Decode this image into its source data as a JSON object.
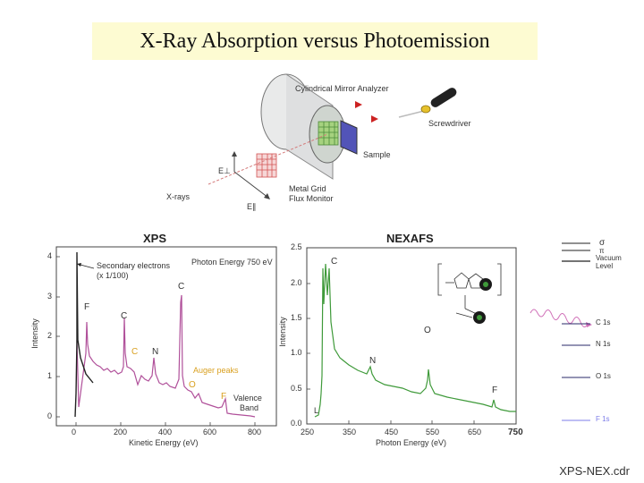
{
  "title": "X-Ray Absorption versus Photoemission",
  "apparatus": {
    "analyzer_label": "Cylindrical Mirror Analyzer",
    "screwdriver_label": "Screwdriver",
    "sample_label": "Sample",
    "grid_label_1": "Metal Grid",
    "grid_label_2": "Flux Monitor",
    "xrays_label": "X-rays",
    "e_perp": "E⊥",
    "e_par": "E∥"
  },
  "xps": {
    "title": "XPS",
    "photon_energy": "Photon Energy 750 eV",
    "secondary_1": "Secondary electrons",
    "secondary_2": "(x 1/100)",
    "auger": "Auger peaks",
    "valence_1": "Valence",
    "valence_2": "Band",
    "ylabel": "Intensity",
    "xlabel": "Kinetic Energy (eV)",
    "xticks": [
      "0",
      "200",
      "400",
      "600",
      "800"
    ],
    "yticks": [
      "0",
      "1",
      "2",
      "3",
      "4"
    ],
    "peak_labels": [
      "F",
      "C",
      "C",
      "N",
      "C",
      "O",
      "F"
    ]
  },
  "nexafs": {
    "title": "NEXAFS",
    "ylabel": "Intensity",
    "xlabel": "Photon Energy (eV)",
    "xticks": [
      "250",
      "350",
      "450",
      "550",
      "650",
      "750"
    ],
    "yticks": [
      "0.0",
      "0.5",
      "1.0",
      "1.5",
      "2.0",
      "2.5"
    ],
    "peak_labels": [
      "C",
      "N",
      "O",
      "F"
    ],
    "start_label": "L"
  },
  "levels": {
    "labels": [
      "σ",
      "π",
      "Vacuum",
      "Level",
      "C 1s",
      "N 1s",
      "O 1s",
      "F 1s"
    ]
  },
  "footer": "XPS-NEX.cdr",
  "colors": {
    "xps": "#b0509a",
    "nexafs": "#3f9a3a",
    "title_bg": "#fdfbd2",
    "auger": "#d9a020",
    "pink_wave": "#d070b8",
    "level_blue": "#7d7de8"
  }
}
